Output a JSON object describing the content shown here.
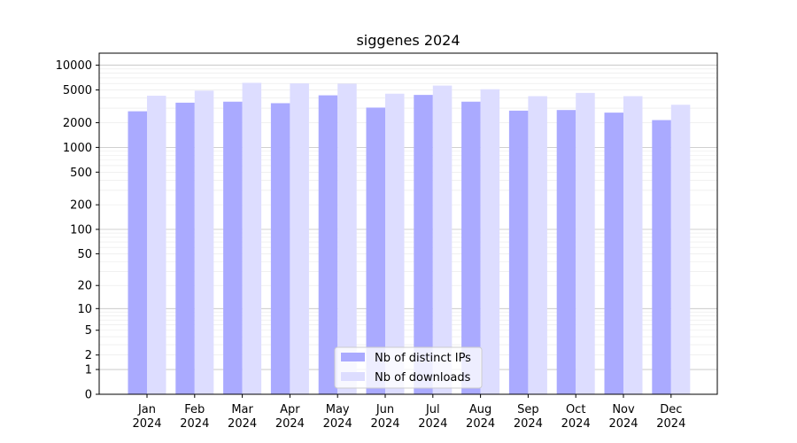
{
  "chart_data": {
    "type": "bar",
    "title": "siggenes 2024",
    "xlabel": "",
    "ylabel": "",
    "yscale": "symlog",
    "ylim": [
      0,
      14000
    ],
    "yticks": [
      0,
      1,
      2,
      5,
      10,
      20,
      50,
      100,
      200,
      500,
      1000,
      2000,
      5000,
      10000
    ],
    "categories": [
      [
        "Jan",
        "2024"
      ],
      [
        "Feb",
        "2024"
      ],
      [
        "Mar",
        "2024"
      ],
      [
        "Apr",
        "2024"
      ],
      [
        "May",
        "2024"
      ],
      [
        "Jun",
        "2024"
      ],
      [
        "Jul",
        "2024"
      ],
      [
        "Aug",
        "2024"
      ],
      [
        "Sep",
        "2024"
      ],
      [
        "Oct",
        "2024"
      ],
      [
        "Nov",
        "2024"
      ],
      [
        "Dec",
        "2024"
      ]
    ],
    "series": [
      {
        "name": "Nb of distinct IPs",
        "color": "#aaaaff",
        "values": [
          2750,
          3500,
          3600,
          3450,
          4300,
          3050,
          4350,
          3600,
          2800,
          2850,
          2650,
          2150
        ]
      },
      {
        "name": "Nb of downloads",
        "color": "#ddddff",
        "values": [
          4250,
          4900,
          6100,
          6000,
          5950,
          4500,
          5650,
          5100,
          4200,
          4600,
          4200,
          3300
        ]
      }
    ],
    "grid": true,
    "legend": "bottom-center"
  }
}
